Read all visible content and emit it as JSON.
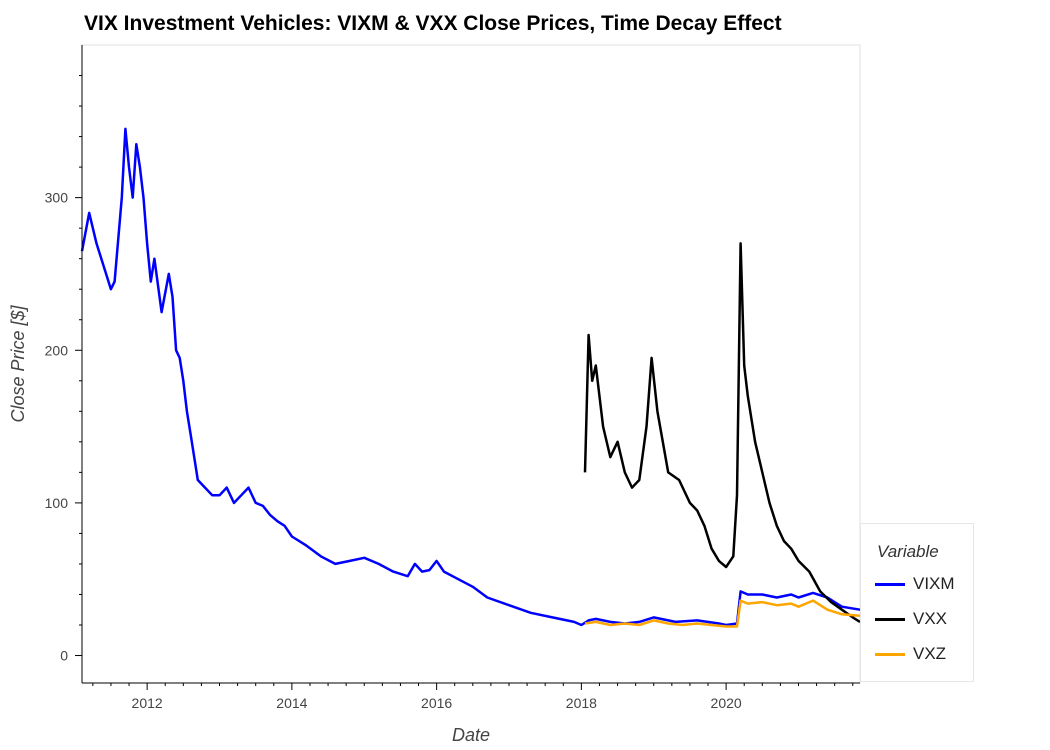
{
  "chart_data": {
    "type": "line",
    "title": "VIX Investment Vehicles: VIXM & VXX Close Prices, Time Decay Effect",
    "xlabel": "Date",
    "ylabel": "Close Price [$]",
    "xlim": [
      2011.1,
      2021.85
    ],
    "ylim": [
      -18,
      400
    ],
    "x_ticks": [
      2012,
      2014,
      2016,
      2018,
      2020
    ],
    "x_tick_labels": [
      "2012",
      "2014",
      "2016",
      "2018",
      "2020"
    ],
    "y_ticks": [
      0,
      100,
      200,
      300
    ],
    "y_tick_labels": [
      "0",
      "100",
      "200",
      "300"
    ],
    "grid": false,
    "legend": {
      "title": "Variable",
      "placement": "right"
    },
    "series": [
      {
        "name": "VIXM",
        "color": "#0000ff",
        "x": [
          2011.1,
          2011.2,
          2011.3,
          2011.4,
          2011.5,
          2011.55,
          2011.65,
          2011.7,
          2011.75,
          2011.8,
          2011.85,
          2011.9,
          2011.95,
          2012.0,
          2012.05,
          2012.1,
          2012.2,
          2012.3,
          2012.35,
          2012.4,
          2012.45,
          2012.5,
          2012.55,
          2012.6,
          2012.65,
          2012.7,
          2012.8,
          2012.9,
          2013.0,
          2013.1,
          2013.2,
          2013.3,
          2013.4,
          2013.5,
          2013.6,
          2013.7,
          2013.8,
          2013.9,
          2014.0,
          2014.2,
          2014.4,
          2014.6,
          2014.8,
          2015.0,
          2015.2,
          2015.4,
          2015.6,
          2015.7,
          2015.8,
          2015.9,
          2016.0,
          2016.1,
          2016.3,
          2016.5,
          2016.7,
          2017.0,
          2017.3,
          2017.6,
          2017.9,
          2018.0,
          2018.1,
          2018.2,
          2018.4,
          2018.6,
          2018.8,
          2019.0,
          2019.3,
          2019.6,
          2019.9,
          2020.0,
          2020.15,
          2020.2,
          2020.3,
          2020.5,
          2020.7,
          2020.9,
          2021.0,
          2021.2,
          2021.4,
          2021.6,
          2021.85
        ],
        "values": [
          265,
          290,
          270,
          255,
          240,
          245,
          300,
          345,
          320,
          300,
          335,
          320,
          300,
          270,
          245,
          260,
          225,
          250,
          235,
          200,
          195,
          180,
          160,
          145,
          130,
          115,
          110,
          105,
          105,
          110,
          100,
          105,
          110,
          100,
          98,
          92,
          88,
          85,
          78,
          72,
          65,
          60,
          62,
          64,
          60,
          55,
          52,
          60,
          55,
          56,
          62,
          55,
          50,
          45,
          38,
          33,
          28,
          25,
          22,
          20,
          23,
          24,
          22,
          21,
          22,
          25,
          22,
          23,
          21,
          20,
          21,
          42,
          40,
          40,
          38,
          40,
          38,
          41,
          38,
          32,
          30
        ]
      },
      {
        "name": "VXX",
        "color": "#000000",
        "x": [
          2018.05,
          2018.1,
          2018.15,
          2018.2,
          2018.3,
          2018.4,
          2018.5,
          2018.6,
          2018.7,
          2018.8,
          2018.9,
          2018.97,
          2019.05,
          2019.2,
          2019.35,
          2019.5,
          2019.6,
          2019.7,
          2019.8,
          2019.9,
          2020.0,
          2020.1,
          2020.15,
          2020.2,
          2020.25,
          2020.3,
          2020.4,
          2020.5,
          2020.6,
          2020.7,
          2020.8,
          2020.9,
          2021.0,
          2021.15,
          2021.3,
          2021.45,
          2021.6,
          2021.75,
          2021.85
        ],
        "values": [
          120,
          210,
          180,
          190,
          150,
          130,
          140,
          120,
          110,
          115,
          150,
          195,
          160,
          120,
          115,
          100,
          95,
          85,
          70,
          62,
          58,
          65,
          105,
          270,
          190,
          170,
          140,
          120,
          100,
          85,
          75,
          70,
          62,
          55,
          42,
          35,
          30,
          25,
          22
        ]
      },
      {
        "name": "VXZ",
        "color": "#ffa500",
        "x": [
          2018.05,
          2018.2,
          2018.4,
          2018.6,
          2018.8,
          2019.0,
          2019.2,
          2019.4,
          2019.6,
          2019.8,
          2020.0,
          2020.15,
          2020.2,
          2020.3,
          2020.5,
          2020.7,
          2020.9,
          2021.0,
          2021.2,
          2021.4,
          2021.6,
          2021.85
        ],
        "values": [
          21,
          22,
          20,
          21,
          20,
          23,
          21,
          20,
          21,
          20,
          19,
          19,
          36,
          34,
          35,
          33,
          34,
          32,
          36,
          30,
          27,
          26
        ]
      }
    ]
  }
}
